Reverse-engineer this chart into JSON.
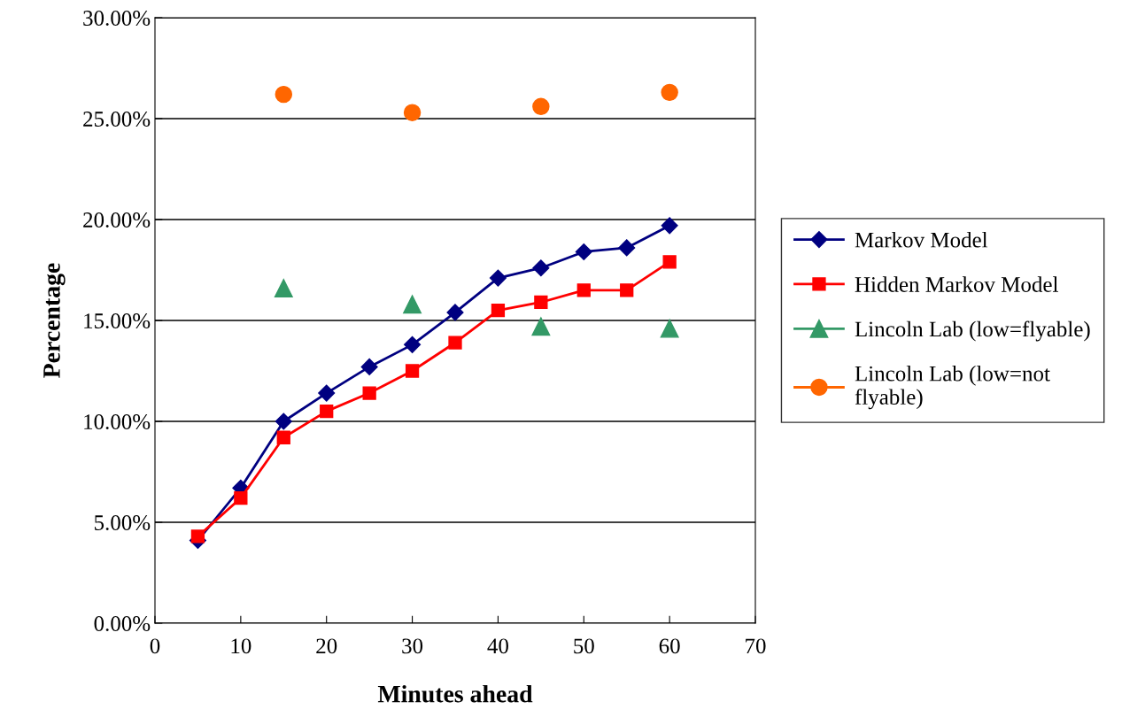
{
  "chart_data": {
    "type": "line",
    "xlabel": "Minutes ahead",
    "ylabel": "Percentage",
    "xlim": [
      0,
      70
    ],
    "xticks": [
      0,
      10,
      20,
      30,
      40,
      50,
      60,
      70
    ],
    "ylim": [
      0,
      30
    ],
    "yticks": [
      {
        "value": 0,
        "label": "0.00%"
      },
      {
        "value": 5,
        "label": "5.00%"
      },
      {
        "value": 10,
        "label": "10.00%"
      },
      {
        "value": 15,
        "label": "15.00%"
      },
      {
        "value": 20,
        "label": "20.00%"
      },
      {
        "value": 25,
        "label": "25.00%"
      },
      {
        "value": 30,
        "label": "30.00%"
      }
    ],
    "grid": "y",
    "legend": "right",
    "series": [
      {
        "name": "Markov Model",
        "marker": "diamond",
        "color": "#000080",
        "x": [
          5,
          10,
          15,
          20,
          25,
          30,
          35,
          40,
          45,
          50,
          55,
          60
        ],
        "values": [
          4.1,
          6.7,
          10.0,
          11.4,
          12.7,
          13.8,
          15.4,
          17.1,
          17.6,
          18.4,
          18.6,
          19.7
        ]
      },
      {
        "name": "Hidden Markov Model",
        "marker": "square",
        "color": "#ff0000",
        "x": [
          5,
          10,
          15,
          20,
          25,
          30,
          35,
          40,
          45,
          50,
          55,
          60
        ],
        "values": [
          4.3,
          6.2,
          9.2,
          10.5,
          11.4,
          12.5,
          13.9,
          15.5,
          15.9,
          16.5,
          16.5,
          17.9
        ]
      },
      {
        "name": "Lincoln Lab (low=flyable)",
        "type": "scatter",
        "marker": "triangle",
        "color": "#339966",
        "x": [
          15,
          30,
          45,
          60
        ],
        "values": [
          16.6,
          15.8,
          14.7,
          14.6
        ]
      },
      {
        "name": "Lincoln Lab (low=not\nflyable)",
        "type": "scatter",
        "marker": "circle",
        "color": "#ff6600",
        "x": [
          15,
          30,
          45,
          60
        ],
        "values": [
          26.2,
          25.3,
          25.6,
          26.3
        ]
      }
    ]
  }
}
